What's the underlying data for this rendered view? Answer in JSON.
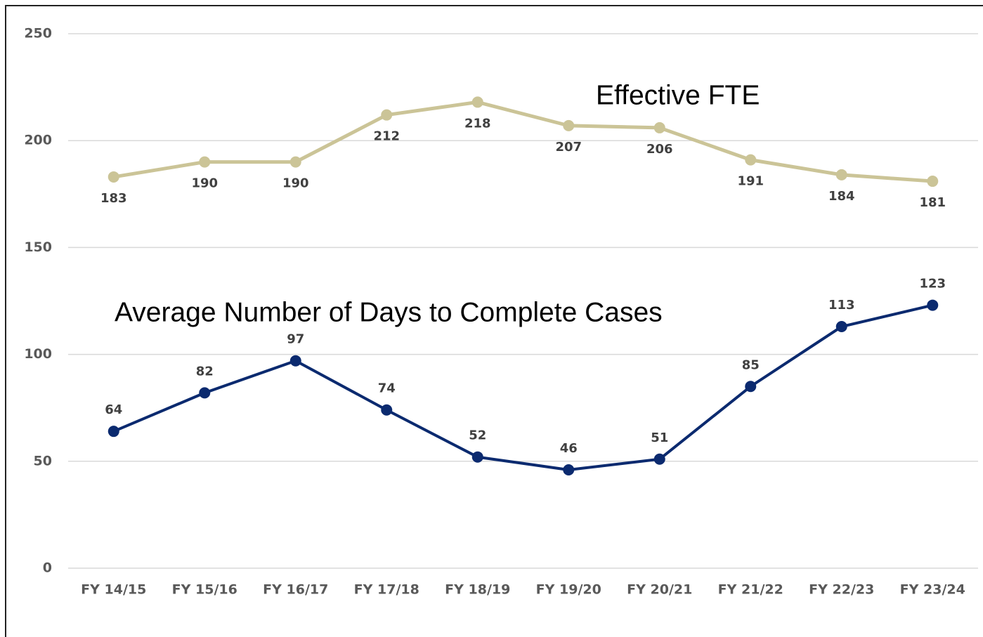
{
  "chart_data": {
    "type": "line",
    "categories": [
      "FY 14/15",
      "FY 15/16",
      "FY 16/17",
      "FY 17/18",
      "FY 18/19",
      "FY 19/20",
      "FY 20/21",
      "FY 21/22",
      "FY 22/23",
      "FY 23/24"
    ],
    "series": [
      {
        "name": "Effective FTE",
        "color": "#cbc497",
        "values": [
          183,
          190,
          190,
          212,
          218,
          207,
          206,
          191,
          184,
          181
        ]
      },
      {
        "name": "Average Number of Days to Complete Cases",
        "color": "#0b2a6f",
        "values": [
          64,
          82,
          97,
          74,
          52,
          46,
          51,
          85,
          113,
          123
        ]
      }
    ],
    "ylim": [
      0,
      250
    ],
    "yticks": [
      0,
      50,
      100,
      150,
      200,
      250
    ],
    "grid": true
  }
}
